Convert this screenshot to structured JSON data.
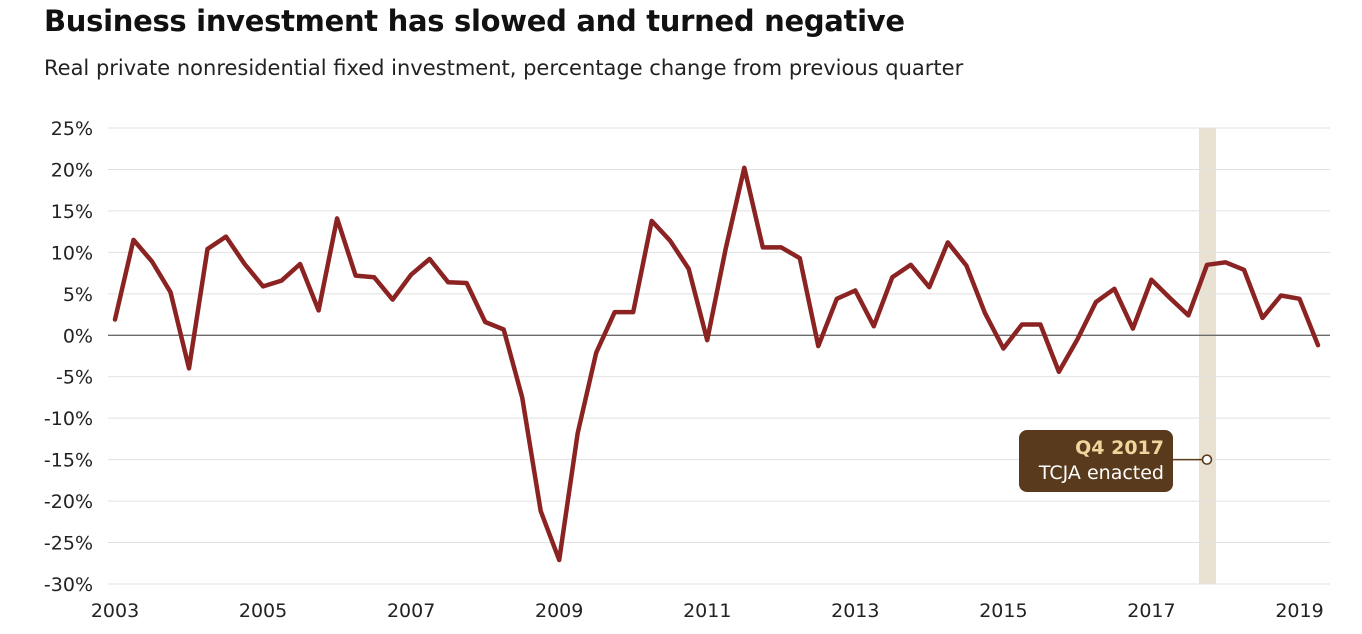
{
  "chart_data": {
    "type": "line",
    "title": "Business investment has slowed and turned negative",
    "subtitle": "Real private nonresidential fixed investment, percentage change from previous quarter",
    "xlabel": "",
    "ylabel": "",
    "ylim": [
      -30,
      25
    ],
    "xlim": [
      2003.0,
      2019.25
    ],
    "yticks": [
      25,
      20,
      15,
      10,
      5,
      0,
      -5,
      -10,
      -15,
      -20,
      -25,
      -30
    ],
    "ytick_labels": [
      "25%",
      "20%",
      "15%",
      "10%",
      "5%",
      "0%",
      "-5%",
      "-10%",
      "-15%",
      "-20%",
      "-25%",
      "-30%"
    ],
    "xticks": [
      2003,
      2005,
      2007,
      2009,
      2011,
      2013,
      2015,
      2017,
      2019
    ],
    "xtick_labels": [
      "2003",
      "2005",
      "2007",
      "2009",
      "2011",
      "2013",
      "2015",
      "2017",
      "2019"
    ],
    "grid": true,
    "legend": "none",
    "line_color": "#8b2323",
    "highlight_band": {
      "x": 2017.75,
      "color": "#e9e2d3"
    },
    "annotation": {
      "x": 2017.75,
      "y": -15,
      "title": "Q4 2017",
      "text": "TCJA enacted",
      "box_color": "#5a3a1c",
      "title_color": "#f1d59d"
    },
    "series": [
      {
        "x": [
          2003.0,
          2003.25,
          2003.5,
          2003.75,
          2004.0,
          2004.25,
          2004.5,
          2004.75,
          2005.0,
          2005.25,
          2005.5,
          2005.75,
          2006.0,
          2006.25,
          2006.5,
          2006.75,
          2007.0,
          2007.25,
          2007.5,
          2007.75,
          2008.0,
          2008.25,
          2008.5,
          2008.75,
          2009.0,
          2009.25,
          2009.5,
          2009.75,
          2010.0,
          2010.25,
          2010.5,
          2010.75,
          2011.0,
          2011.25,
          2011.5,
          2011.75,
          2012.0,
          2012.25,
          2012.5,
          2012.75,
          2013.0,
          2013.25,
          2013.5,
          2013.75,
          2014.0,
          2014.25,
          2014.5,
          2014.75,
          2015.0,
          2015.25,
          2015.5,
          2015.75,
          2016.0,
          2016.25,
          2016.5,
          2016.75,
          2017.0,
          2017.25,
          2017.5,
          2017.75,
          2018.0,
          2018.25,
          2018.5,
          2018.75,
          2019.0,
          2019.25
        ],
        "values": [
          1.9,
          11.5,
          8.9,
          5.2,
          -4.0,
          10.4,
          11.9,
          8.6,
          5.9,
          6.6,
          8.6,
          3.0,
          14.1,
          7.2,
          7.0,
          4.3,
          7.3,
          9.2,
          6.4,
          6.3,
          1.6,
          0.7,
          -7.5,
          -21.2,
          -27.1,
          -11.8,
          -2.1,
          2.8,
          2.8,
          13.8,
          11.4,
          8.0,
          -0.6,
          10.5,
          20.2,
          10.6,
          10.6,
          9.3,
          -1.3,
          4.4,
          5.4,
          1.1,
          7.0,
          8.5,
          5.8,
          11.2,
          8.4,
          2.7,
          -1.6,
          1.3,
          1.3,
          -4.4,
          -0.5,
          4.0,
          5.6,
          0.8,
          6.7,
          4.5,
          2.4,
          8.5,
          8.8,
          7.9,
          2.1,
          4.8,
          4.4,
          -1.2
        ]
      }
    ]
  }
}
